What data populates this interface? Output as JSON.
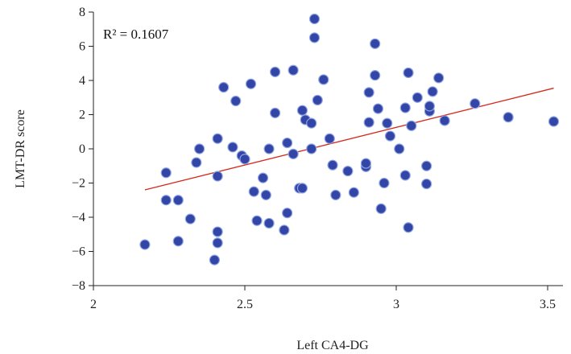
{
  "chart_data": {
    "type": "scatter",
    "title": "",
    "xlabel": "Left CA4-DG",
    "ylabel": "LMT-DR score",
    "xlim": [
      2,
      3.55
    ],
    "ylim": [
      -8,
      8
    ],
    "x_ticks": [
      "2",
      "2.5",
      "3",
      "3.5"
    ],
    "y_ticks": [
      "8",
      "6",
      "4",
      "2",
      "0",
      "−2",
      "−4",
      "−6",
      "−8"
    ],
    "annotation": "R² = 0.1607",
    "trendline": {
      "x": [
        2.17,
        3.52
      ],
      "y": [
        -2.4,
        3.55
      ],
      "color": "#d42a1e"
    },
    "point_color": "#3346a8",
    "grid": false,
    "points": [
      {
        "x": 2.17,
        "y": -5.6
      },
      {
        "x": 2.24,
        "y": -1.4
      },
      {
        "x": 2.24,
        "y": -3.0
      },
      {
        "x": 2.28,
        "y": -3.0
      },
      {
        "x": 2.28,
        "y": -5.4
      },
      {
        "x": 2.32,
        "y": -4.1
      },
      {
        "x": 2.34,
        "y": -0.8
      },
      {
        "x": 2.35,
        "y": 0.0
      },
      {
        "x": 2.4,
        "y": -6.5
      },
      {
        "x": 2.41,
        "y": -5.5
      },
      {
        "x": 2.41,
        "y": -4.85
      },
      {
        "x": 2.41,
        "y": -1.6
      },
      {
        "x": 2.41,
        "y": 0.6
      },
      {
        "x": 2.43,
        "y": 3.6
      },
      {
        "x": 2.46,
        "y": 0.1
      },
      {
        "x": 2.47,
        "y": 2.8
      },
      {
        "x": 2.49,
        "y": -0.4
      },
      {
        "x": 2.5,
        "y": -0.6
      },
      {
        "x": 2.52,
        "y": 3.8
      },
      {
        "x": 2.53,
        "y": -2.5
      },
      {
        "x": 2.54,
        "y": -4.2
      },
      {
        "x": 2.56,
        "y": -1.7
      },
      {
        "x": 2.57,
        "y": -2.7
      },
      {
        "x": 2.58,
        "y": 0.0
      },
      {
        "x": 2.58,
        "y": -4.35
      },
      {
        "x": 2.6,
        "y": 2.1
      },
      {
        "x": 2.6,
        "y": 4.5
      },
      {
        "x": 2.63,
        "y": -4.75
      },
      {
        "x": 2.64,
        "y": -3.75
      },
      {
        "x": 2.64,
        "y": 0.35
      },
      {
        "x": 2.66,
        "y": -0.3
      },
      {
        "x": 2.66,
        "y": 4.6
      },
      {
        "x": 2.68,
        "y": -2.3
      },
      {
        "x": 2.69,
        "y": -2.3
      },
      {
        "x": 2.69,
        "y": 2.25
      },
      {
        "x": 2.7,
        "y": 1.7
      },
      {
        "x": 2.72,
        "y": 1.5
      },
      {
        "x": 2.72,
        "y": 0.0
      },
      {
        "x": 2.73,
        "y": 6.5
      },
      {
        "x": 2.73,
        "y": 7.6
      },
      {
        "x": 2.74,
        "y": 2.85
      },
      {
        "x": 2.76,
        "y": 4.05
      },
      {
        "x": 2.78,
        "y": 0.6
      },
      {
        "x": 2.79,
        "y": -0.95
      },
      {
        "x": 2.8,
        "y": -2.7
      },
      {
        "x": 2.84,
        "y": -1.3
      },
      {
        "x": 2.86,
        "y": -2.55
      },
      {
        "x": 2.9,
        "y": -1.05
      },
      {
        "x": 2.9,
        "y": -0.85
      },
      {
        "x": 2.91,
        "y": 3.3
      },
      {
        "x": 2.91,
        "y": 1.55
      },
      {
        "x": 2.93,
        "y": 6.15
      },
      {
        "x": 2.93,
        "y": 4.3
      },
      {
        "x": 2.94,
        "y": 2.35
      },
      {
        "x": 2.95,
        "y": -3.5
      },
      {
        "x": 2.96,
        "y": -2.0
      },
      {
        "x": 2.97,
        "y": 1.5
      },
      {
        "x": 2.98,
        "y": 0.75
      },
      {
        "x": 3.01,
        "y": 0.0
      },
      {
        "x": 3.03,
        "y": 2.4
      },
      {
        "x": 3.03,
        "y": -1.55
      },
      {
        "x": 3.04,
        "y": 4.45
      },
      {
        "x": 3.04,
        "y": -4.6
      },
      {
        "x": 3.05,
        "y": 1.35
      },
      {
        "x": 3.07,
        "y": 3.0
      },
      {
        "x": 3.1,
        "y": -1.0
      },
      {
        "x": 3.1,
        "y": -2.05
      },
      {
        "x": 3.11,
        "y": 2.2
      },
      {
        "x": 3.11,
        "y": 2.5
      },
      {
        "x": 3.12,
        "y": 3.35
      },
      {
        "x": 3.14,
        "y": 4.15
      },
      {
        "x": 3.16,
        "y": 1.65
      },
      {
        "x": 3.26,
        "y": 2.65
      },
      {
        "x": 3.37,
        "y": 1.85
      },
      {
        "x": 3.52,
        "y": 1.6
      }
    ]
  }
}
